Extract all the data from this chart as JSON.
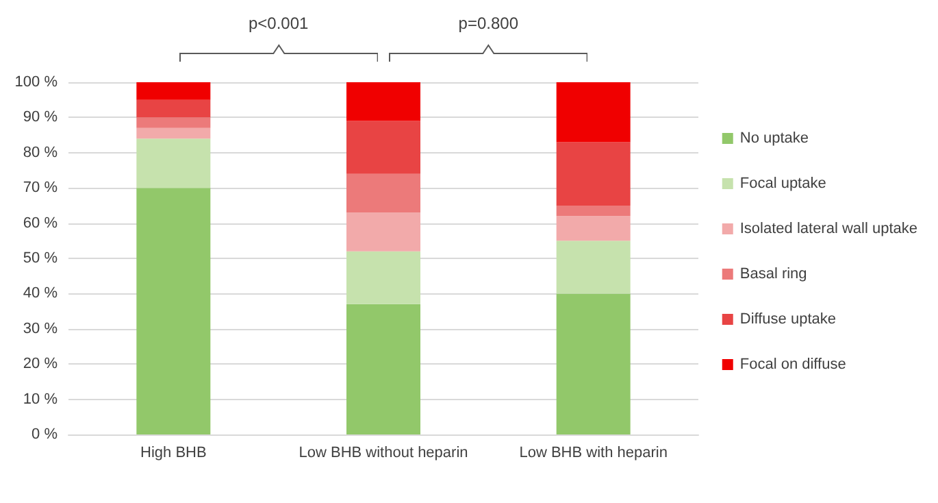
{
  "chart_data": {
    "type": "bar",
    "stacked": true,
    "categories": [
      "High BHB",
      "Low BHB without heparin",
      "Low BHB with heparin"
    ],
    "series": [
      {
        "name": "No uptake",
        "color": "#92c86a",
        "values": [
          70,
          37,
          40
        ]
      },
      {
        "name": "Focal uptake",
        "color": "#c6e2ad",
        "values": [
          14,
          15,
          15
        ]
      },
      {
        "name": "Isolated lateral wall uptake",
        "color": "#f2aaaa",
        "values": [
          3,
          11,
          7
        ]
      },
      {
        "name": "Basal ring",
        "color": "#ec7a7a",
        "values": [
          3,
          11,
          3
        ]
      },
      {
        "name": "Diffuse uptake",
        "color": "#e84444",
        "values": [
          5,
          15,
          18
        ]
      },
      {
        "name": "Focal on diffuse",
        "color": "#f00000",
        "values": [
          5,
          11,
          17
        ]
      }
    ],
    "ylim": [
      0,
      100
    ],
    "yticks": [
      {
        "value": 0,
        "label": "0 %"
      },
      {
        "value": 10,
        "label": "10 %"
      },
      {
        "value": 20,
        "label": "20 %"
      },
      {
        "value": 30,
        "label": "30 %"
      },
      {
        "value": 40,
        "label": "40 %"
      },
      {
        "value": 50,
        "label": "50 %"
      },
      {
        "value": 60,
        "label": "60 %"
      },
      {
        "value": 70,
        "label": "70 %"
      },
      {
        "value": 80,
        "label": "80 %"
      },
      {
        "value": 90,
        "label": "90 %"
      },
      {
        "value": 100,
        "label": "100 %"
      }
    ],
    "grid": "y",
    "legend": "right",
    "annotations": [
      "p<0.001",
      "p=0.800"
    ]
  }
}
